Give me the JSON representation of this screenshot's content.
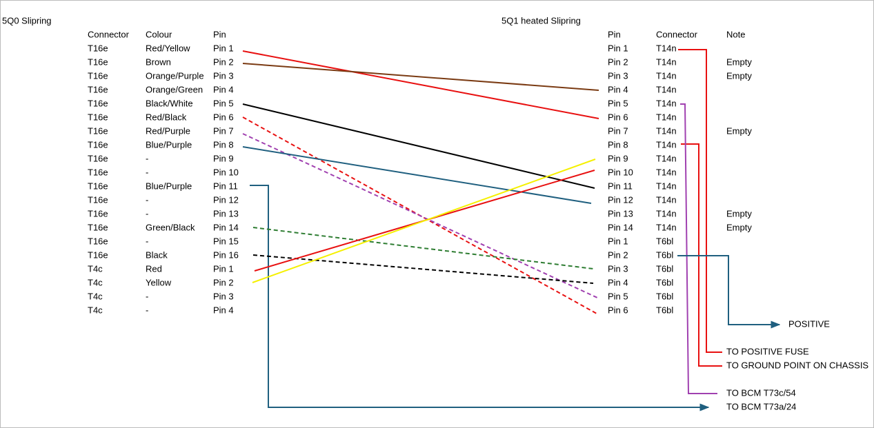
{
  "left": {
    "title": "5Q0 Slipring",
    "headers": [
      "Connector",
      "Colour",
      "Pin"
    ],
    "rows": [
      [
        "T16e",
        "Red/Yellow",
        "Pin 1"
      ],
      [
        "T16e",
        "Brown",
        "Pin 2"
      ],
      [
        "T16e",
        "Orange/Purple",
        "Pin 3"
      ],
      [
        "T16e",
        "Orange/Green",
        "Pin 4"
      ],
      [
        "T16e",
        "Black/White",
        "Pin 5"
      ],
      [
        "T16e",
        "Red/Black",
        "Pin 6"
      ],
      [
        "T16e",
        "Red/Purple",
        "Pin 7"
      ],
      [
        "T16e",
        "Blue/Purple",
        "Pin 8"
      ],
      [
        "T16e",
        "-",
        "Pin 9"
      ],
      [
        "T16e",
        "-",
        "Pin 10"
      ],
      [
        "T16e",
        "Blue/Purple",
        "Pin 11"
      ],
      [
        "T16e",
        "-",
        "Pin 12"
      ],
      [
        "T16e",
        "-",
        "Pin 13"
      ],
      [
        "T16e",
        "Green/Black",
        "Pin 14"
      ],
      [
        "T16e",
        "-",
        "Pin 15"
      ],
      [
        "T16e",
        "Black",
        "Pin 16"
      ],
      [
        "T4c",
        "Red",
        "Pin 1"
      ],
      [
        "T4c",
        "Yellow",
        "Pin 2"
      ],
      [
        "T4c",
        "-",
        "Pin 3"
      ],
      [
        "T4c",
        "-",
        "Pin 4"
      ]
    ]
  },
  "right": {
    "title": "5Q1 heated Slipring",
    "headers": [
      "Pin",
      "Connector",
      "Note"
    ],
    "rows": [
      [
        "Pin 1",
        "T14n"
      ],
      [
        "Pin 2",
        "T14n",
        "Empty"
      ],
      [
        "Pin 3",
        "T14n",
        "Empty"
      ],
      [
        "Pin 4",
        "T14n"
      ],
      [
        "Pin 5",
        "T14n"
      ],
      [
        "Pin 6",
        "T14n"
      ],
      [
        "Pin 7",
        "T14n",
        "Empty"
      ],
      [
        "Pin 8",
        "T14n"
      ],
      [
        "Pin 9",
        "T14n"
      ],
      [
        "Pin 10",
        "T14n"
      ],
      [
        "Pin 11",
        "T14n"
      ],
      [
        "Pin 12",
        "T14n"
      ],
      [
        "Pin 13",
        "T14n",
        "Empty"
      ],
      [
        "Pin 14",
        "T14n",
        "Empty"
      ],
      [
        "Pin 1",
        "T6bl"
      ],
      [
        "Pin 2",
        "T6bl"
      ],
      [
        "Pin 3",
        "T6bl"
      ],
      [
        "Pin 4",
        "T6bl"
      ],
      [
        "Pin 5",
        "T6bl"
      ],
      [
        "Pin 6",
        "T6bl"
      ]
    ]
  },
  "labels": {
    "positive": "POSITIVE",
    "positive_fuse": "TO POSITIVE FUSE",
    "ground": "TO GROUND POINT ON CHASSIS",
    "bcm_54": "TO BCM T73c/54",
    "bcm_24": "TO BCM T73a/24"
  }
}
